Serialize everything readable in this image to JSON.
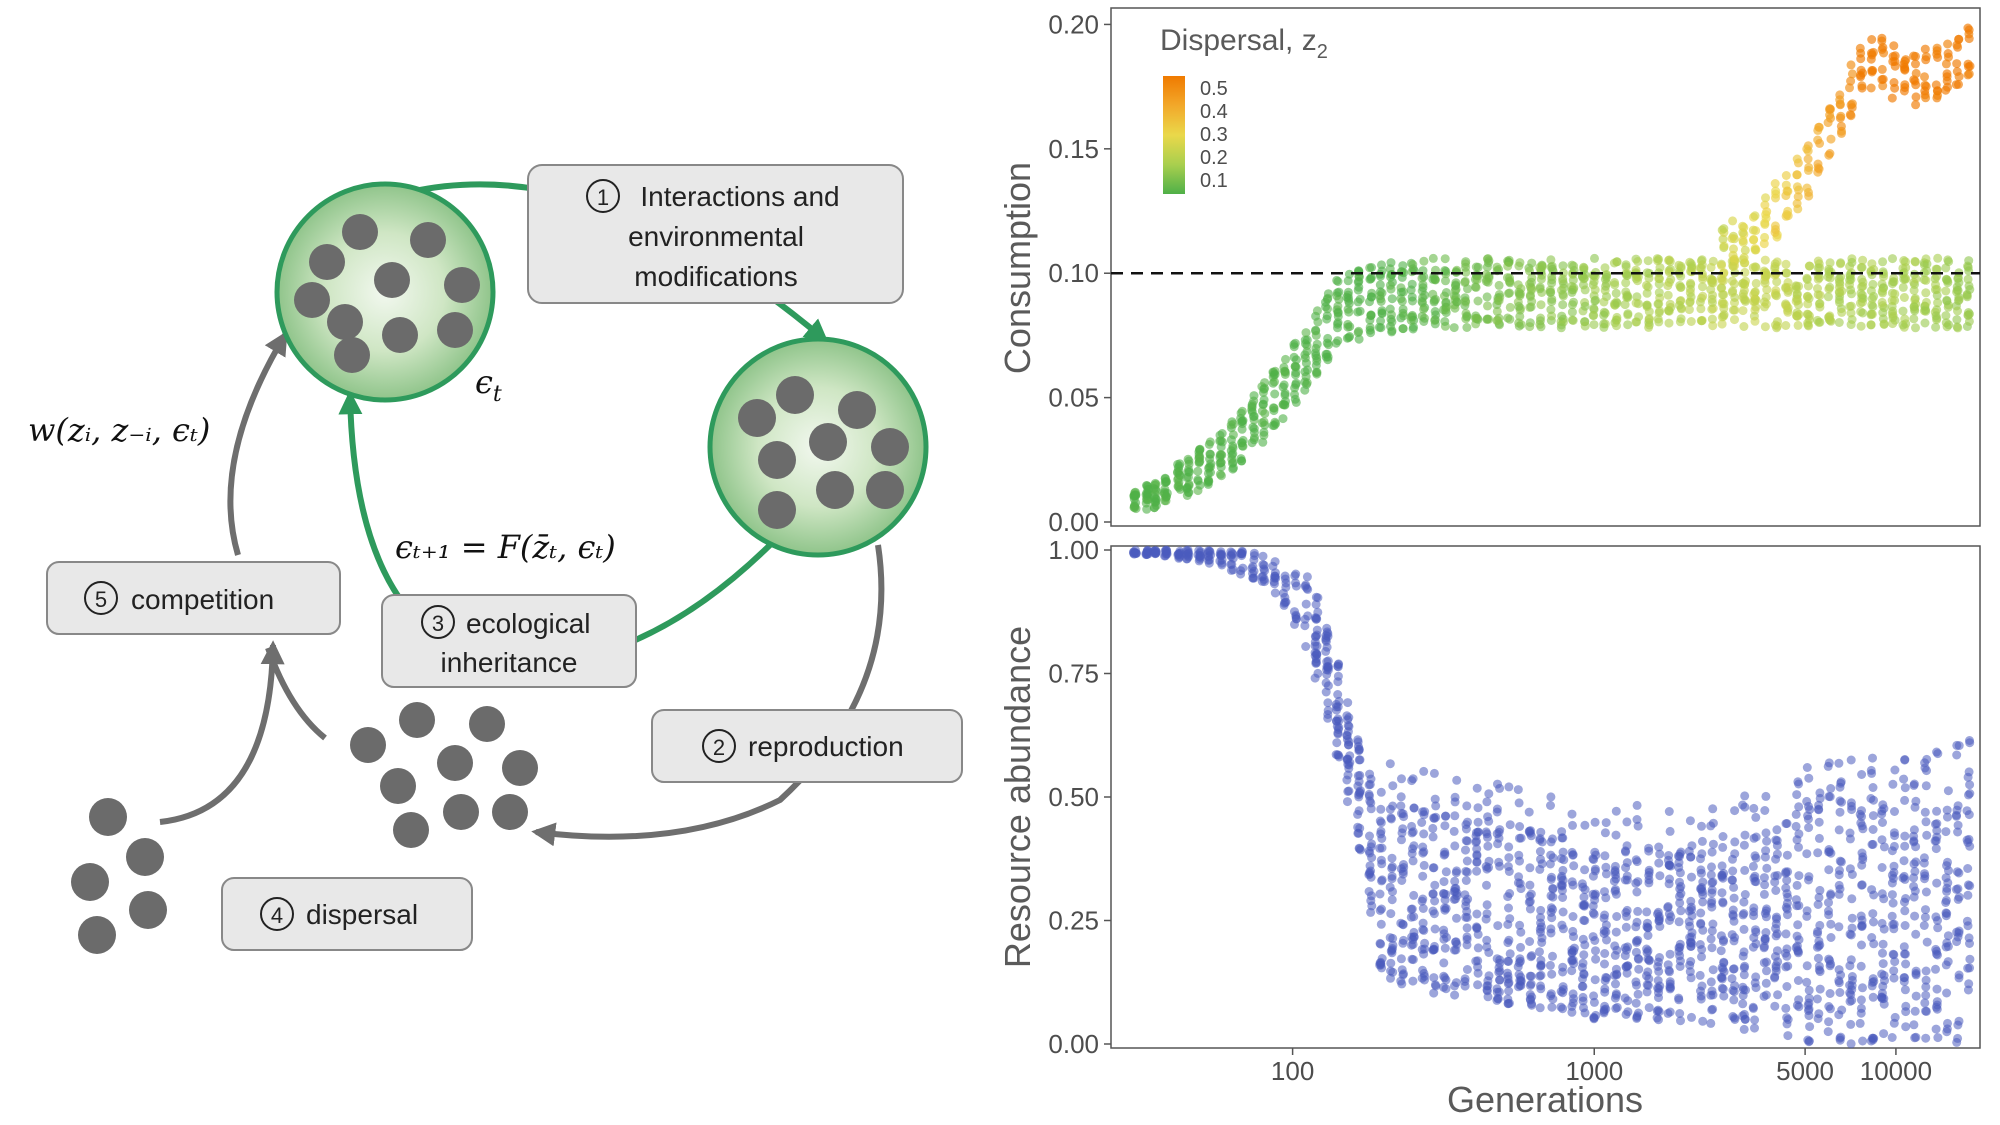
{
  "diagram": {
    "steps": [
      {
        "num": "1",
        "lines": [
          "Interactions and",
          "environmental",
          "modifications"
        ]
      },
      {
        "num": "2",
        "lines": [
          "reproduction"
        ]
      },
      {
        "num": "3",
        "lines": [
          "ecological",
          "inheritance"
        ]
      },
      {
        "num": "4",
        "lines": [
          "dispersal"
        ]
      },
      {
        "num": "5",
        "lines": [
          "competition"
        ]
      }
    ],
    "epsilon_label": "ϵ",
    "epsilon_sub": "t",
    "fitness_formula": "w(zᵢ, z₋ᵢ, ϵₜ)",
    "inheritance_formula": "ϵₜ₊₁ = F(z̄ₜ, ϵₜ)",
    "colors": {
      "green": "#2e9a5c",
      "gray_arrow": "#6e6e6e",
      "dot": "#707070",
      "box_fill": "#e8e8e8",
      "box_stroke": "#888888"
    }
  },
  "chart_data": [
    {
      "type": "scatter",
      "xlabel": "",
      "ylabel": "Consumption",
      "x_scale": "log",
      "xlim": [
        25,
        19000
      ],
      "ylim": [
        0,
        0.205
      ],
      "yticks": [
        "0.00",
        "0.05",
        "0.10",
        "0.15",
        "0.20"
      ],
      "ytick_values": [
        0,
        0.05,
        0.1,
        0.15,
        0.2
      ],
      "reference_line": {
        "y": 0.1,
        "style": "dashed"
      },
      "legend": {
        "title": "Dispersal, z",
        "title_sub": "2",
        "labels": [
          "0.5",
          "0.4",
          "0.3",
          "0.2",
          "0.1"
        ],
        "placement": "top-left",
        "colors": [
          "#f07a00",
          "#f2a82a",
          "#ead84a",
          "#a9cf4e",
          "#4fb048"
        ]
      },
      "branch_low": {
        "x": [
          30,
          36,
          45,
          55,
          68,
          82,
          100,
          125,
          150,
          200,
          300,
          500,
          800,
          1000,
          2000,
          3000,
          4000,
          5000,
          7000,
          10000,
          18000
        ],
        "y_min": [
          0.004,
          0.006,
          0.01,
          0.016,
          0.024,
          0.033,
          0.045,
          0.062,
          0.072,
          0.076,
          0.078,
          0.078,
          0.078,
          0.078,
          0.078,
          0.078,
          0.078,
          0.078,
          0.078,
          0.078,
          0.078
        ],
        "y_max": [
          0.012,
          0.018,
          0.026,
          0.034,
          0.045,
          0.058,
          0.072,
          0.09,
          0.102,
          0.105,
          0.106,
          0.106,
          0.106,
          0.106,
          0.106,
          0.106,
          0.106,
          0.106,
          0.106,
          0.106,
          0.106
        ],
        "dispersal": [
          0.1,
          0.1,
          0.1,
          0.1,
          0.1,
          0.1,
          0.1,
          0.1,
          0.1,
          0.1,
          0.12,
          0.15,
          0.17,
          0.18,
          0.22,
          0.24,
          0.24,
          0.22,
          0.2,
          0.2,
          0.18
        ]
      },
      "branch_high": {
        "x": [
          2500,
          3000,
          3500,
          4000,
          5000,
          6000,
          7000,
          8000,
          9000,
          10000,
          12000,
          14000,
          16000,
          18000
        ],
        "y": [
          0.106,
          0.112,
          0.118,
          0.125,
          0.14,
          0.155,
          0.172,
          0.184,
          0.185,
          0.18,
          0.178,
          0.182,
          0.186,
          0.19
        ],
        "dispersal": [
          0.24,
          0.27,
          0.29,
          0.32,
          0.36,
          0.42,
          0.46,
          0.5,
          0.5,
          0.52,
          0.5,
          0.5,
          0.5,
          0.5
        ]
      }
    },
    {
      "type": "scatter",
      "xlabel": "Generations",
      "ylabel": "Resource abundance",
      "x_scale": "log",
      "xlim": [
        25,
        19000
      ],
      "ylim": [
        0,
        1.0
      ],
      "xticks": [
        "100",
        "1000",
        "5000",
        "10000"
      ],
      "xtick_values": [
        100,
        1000,
        5000,
        10000
      ],
      "yticks": [
        "0.00",
        "0.25",
        "0.50",
        "0.75",
        "1.00"
      ],
      "ytick_values": [
        0,
        0.25,
        0.5,
        0.75,
        1.0
      ],
      "color": "#4a5bbd",
      "x": [
        30,
        36,
        45,
        55,
        68,
        82,
        100,
        115,
        135,
        160,
        200,
        300,
        500,
        800,
        1000,
        2000,
        3000,
        4000,
        5000,
        7000,
        10000,
        14000,
        18000
      ],
      "y_min": [
        0.99,
        0.99,
        0.98,
        0.97,
        0.95,
        0.93,
        0.86,
        0.78,
        0.62,
        0.44,
        0.12,
        0.1,
        0.08,
        0.06,
        0.05,
        0.04,
        0.03,
        0.02,
        0.0,
        0.0,
        0.0,
        0.0,
        0.0
      ],
      "y_max": [
        1.0,
        1.0,
        1.0,
        1.0,
        1.0,
        0.99,
        0.97,
        0.94,
        0.82,
        0.65,
        0.5,
        0.47,
        0.45,
        0.42,
        0.41,
        0.4,
        0.42,
        0.44,
        0.48,
        0.5,
        0.5,
        0.52,
        0.54
      ]
    }
  ]
}
